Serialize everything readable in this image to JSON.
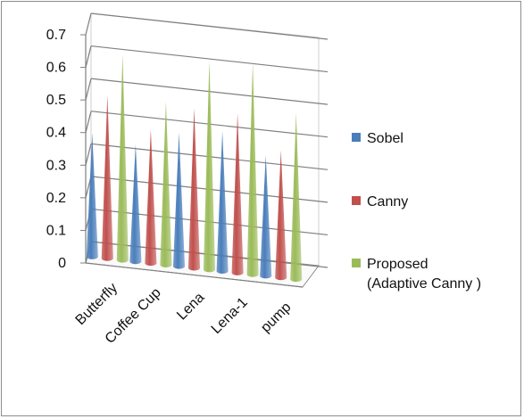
{
  "chart_data": {
    "type": "bar",
    "style": "3d-cone",
    "categories": [
      "Butterfly",
      "Coffee Cup",
      "Lena",
      "Lena-1",
      "pump"
    ],
    "series": [
      {
        "name": "Sobel",
        "color": "#4a7ebb",
        "values": [
          0.38,
          0.36,
          0.41,
          0.43,
          0.37
        ]
      },
      {
        "name": "Canny",
        "color": "#c0504d",
        "values": [
          0.5,
          0.41,
          0.49,
          0.49,
          0.39
        ]
      },
      {
        "name": "Proposed\n(Adaptive Canny )",
        "color": "#9bbb59",
        "values": [
          0.63,
          0.5,
          0.64,
          0.65,
          0.51
        ]
      }
    ],
    "yticks": [
      "0",
      "0.1",
      "0.2",
      "0.3",
      "0.4",
      "0.5",
      "0.6",
      "0.7"
    ],
    "ylim": [
      0,
      0.7
    ],
    "grid": true,
    "legend_position": "right",
    "title": "",
    "xlabel": "",
    "ylabel": ""
  }
}
